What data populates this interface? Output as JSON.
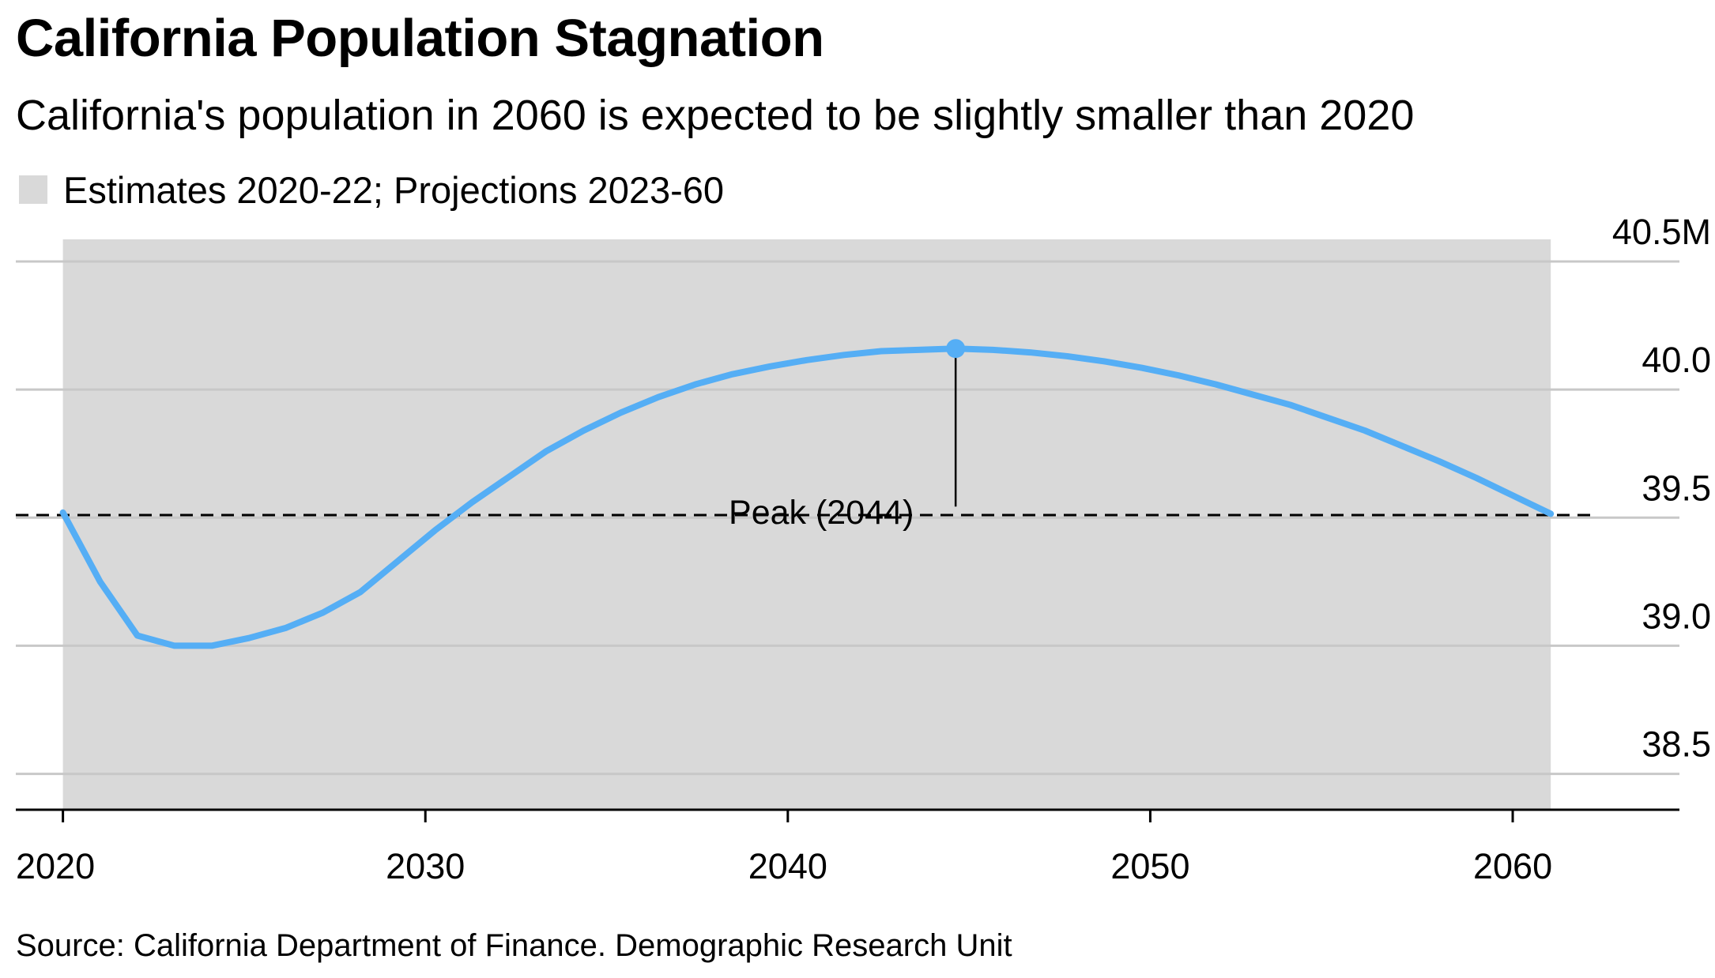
{
  "chart_data": {
    "type": "line",
    "title": "California Population Stagnation",
    "subtitle": "California's population in 2060 is expected to be slightly smaller than 2020",
    "legend": [
      {
        "label": "Estimates 2020-22; Projections 2023-60",
        "color": "#d9d9d9"
      }
    ],
    "source": "Source: California Department of Finance. Demographic Research Unit",
    "line_color": "#55aef5",
    "shade_range": [
      2020,
      2060
    ],
    "xlim": [
      2018.7,
      2064.6
    ],
    "ylim": [
      38.36,
      40.58
    ],
    "x_ticks": [
      2020,
      2030,
      2040,
      2050,
      2060
    ],
    "x_tick_labels": [
      "2020",
      "2030",
      "2040",
      "2050",
      "2060"
    ],
    "y_ticks": [
      38.5,
      39.0,
      39.5,
      40.0,
      40.5
    ],
    "y_tick_labels": [
      "38.5",
      "39.0",
      "39.5",
      "40.0",
      "40.5M"
    ],
    "gridlines": true,
    "reference_line": {
      "y": 39.51,
      "x_range": [
        2018.7,
        2061.1
      ],
      "style": "dashed"
    },
    "series": [
      {
        "x": [
          2020,
          2021,
          2022,
          2023,
          2024,
          2025,
          2026,
          2027,
          2028,
          2029,
          2030,
          2031,
          2032,
          2033,
          2034,
          2035,
          2036,
          2037,
          2038,
          2039,
          2040,
          2041,
          2042,
          2043,
          2044,
          2045,
          2046,
          2047,
          2048,
          2049,
          2050,
          2051,
          2052,
          2053,
          2054,
          2055,
          2056,
          2057,
          2058,
          2059,
          2060
        ],
        "values": [
          39.52,
          39.25,
          39.04,
          39.0,
          39.0,
          39.03,
          39.07,
          39.13,
          39.21,
          39.33,
          39.45,
          39.56,
          39.66,
          39.76,
          39.84,
          39.91,
          39.97,
          40.02,
          40.06,
          40.09,
          40.115,
          40.135,
          40.15,
          40.155,
          40.16,
          40.155,
          40.145,
          40.13,
          40.11,
          40.085,
          40.055,
          40.02,
          39.98,
          39.94,
          39.89,
          39.84,
          39.78,
          39.72,
          39.655,
          39.585,
          39.515
        ]
      }
    ],
    "annotations": [
      {
        "label": "Peak (2044)",
        "x": 2044,
        "y": 40.16
      }
    ]
  }
}
